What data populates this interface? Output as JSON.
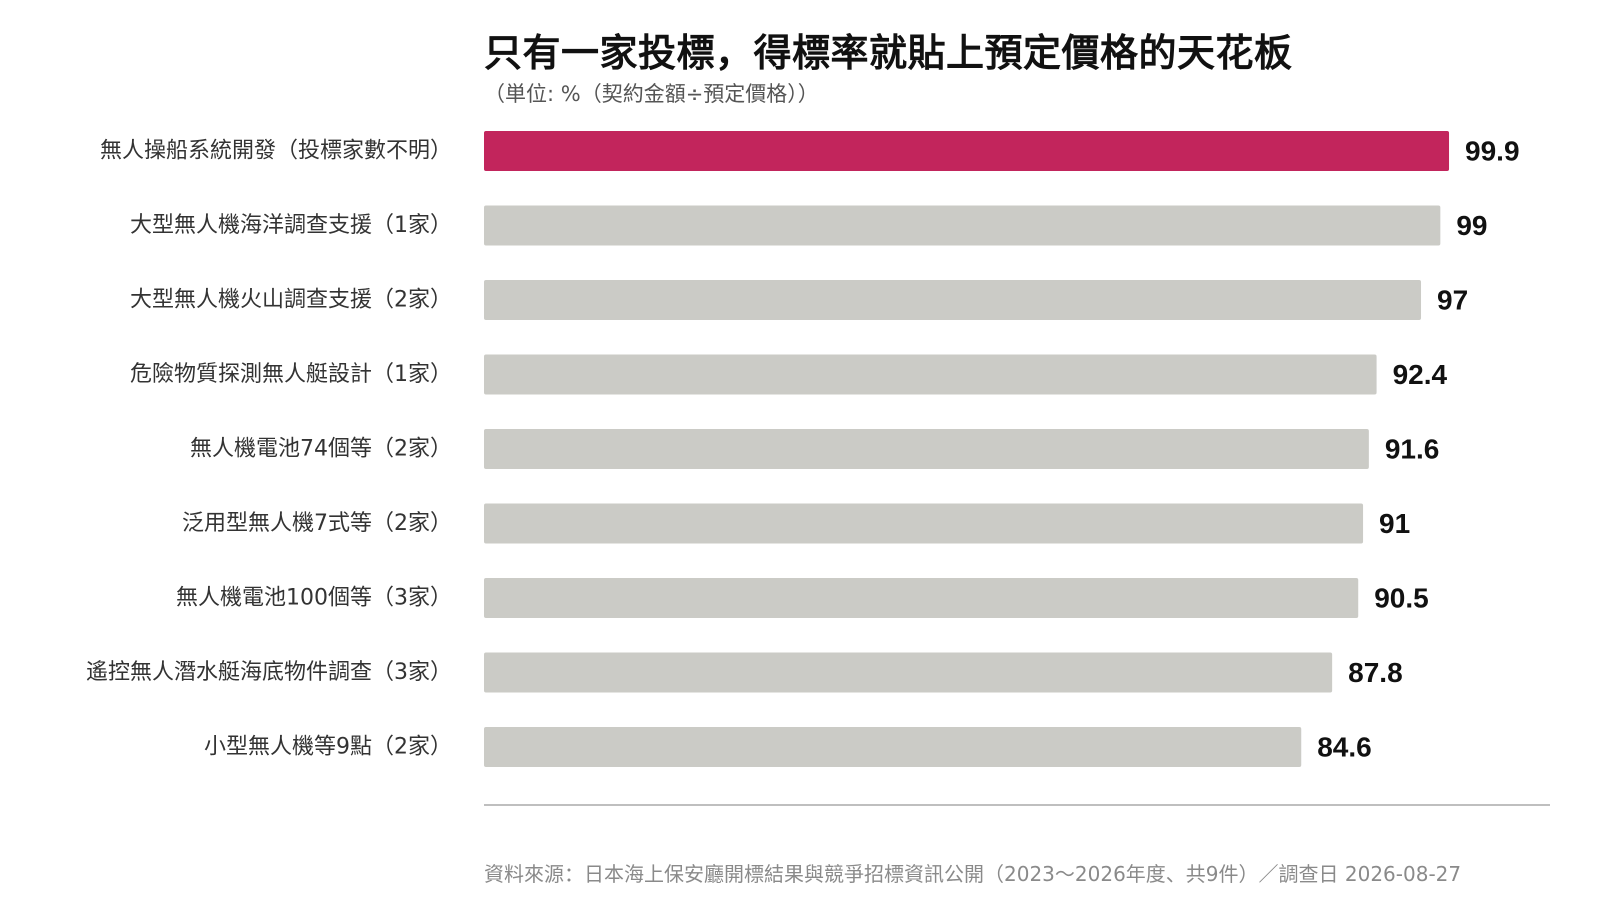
{
  "chart_data": {
    "type": "bar",
    "orientation": "horizontal",
    "title": "只有一家投標，得標率就貼上預定價格的天花板",
    "subtitle": "（単位: %（契約金額÷預定價格））",
    "categories": [
      "無人操船系統開發（投標家數不明）",
      "大型無人機海洋調查支援（1家）",
      "大型無人機火山調查支援（2家）",
      "危險物質探測無人艇設計（1家）",
      "無人機電池74個等（2家）",
      "泛用型無人機7式等（2家）",
      "無人機電池100個等（3家）",
      "遙控無人潛水艇海底物件調查（3家）",
      "小型無人機等9點（2家）"
    ],
    "values": [
      99.9,
      99,
      97,
      92.4,
      91.6,
      91,
      90.5,
      87.8,
      84.6
    ],
    "value_labels": [
      "99.9",
      "99",
      "97",
      "92.4",
      "91.6",
      "91",
      "90.5",
      "87.8",
      "84.6"
    ],
    "xlim": [
      0,
      100
    ],
    "highlight_index": 0,
    "colors": {
      "highlight": "#c2255c",
      "bar": "#cbcbc6",
      "axis": "#aaaaaa",
      "label": "#333333",
      "value": "#111111"
    },
    "grid": false,
    "legend": "none"
  },
  "source": "資料來源：日本海上保安廳開標結果與競爭招標資訊公開（2023～2026年度、共9件）／調查日 2026-08-27"
}
